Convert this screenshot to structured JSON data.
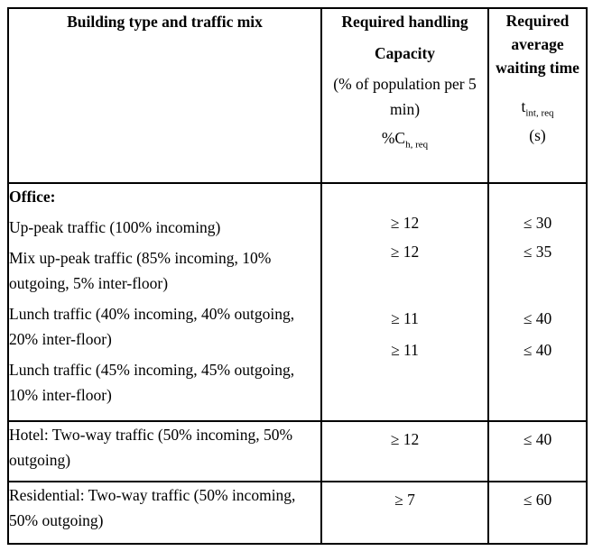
{
  "table": {
    "header": {
      "col1": "Building type and traffic mix",
      "col2": {
        "title_line1": "Required handling",
        "title_line2": "Capacity",
        "subtitle": "(% of population per 5 min)",
        "symbol_base": "%C",
        "symbol_sub": "h, req"
      },
      "col3": {
        "title": "Required average waiting time",
        "symbol_base": "t",
        "symbol_sub": "int, req",
        "unit": "(s)"
      }
    },
    "sections": [
      {
        "heading": "Office:",
        "rows": [
          {
            "label": "Up-peak traffic (100% incoming)",
            "capacity": "≥ 12",
            "waiting_time": "≤ 30"
          },
          {
            "label": "Mix up-peak traffic (85% incoming, 10% outgoing, 5% inter-floor)",
            "capacity": "≥ 12",
            "waiting_time": "≤ 35"
          },
          {
            "label": "Lunch traffic (40% incoming, 40% outgoing, 20% inter-floor)",
            "capacity": "≥ 11",
            "waiting_time": "≤ 40"
          },
          {
            "label": "Lunch traffic (45% incoming, 45% outgoing, 10%  inter-floor)",
            "capacity": "≥ 11",
            "waiting_time": "≤ 40"
          }
        ]
      },
      {
        "rows": [
          {
            "label": "Hotel: Two-way traffic (50% incoming, 50% outgoing)",
            "capacity": "≥ 12",
            "waiting_time": "≤ 40"
          }
        ]
      },
      {
        "rows": [
          {
            "label": "Residential: Two-way traffic (50% incoming, 50% outgoing)",
            "capacity": "≥ 7",
            "waiting_time": "≤ 60"
          }
        ]
      }
    ]
  }
}
